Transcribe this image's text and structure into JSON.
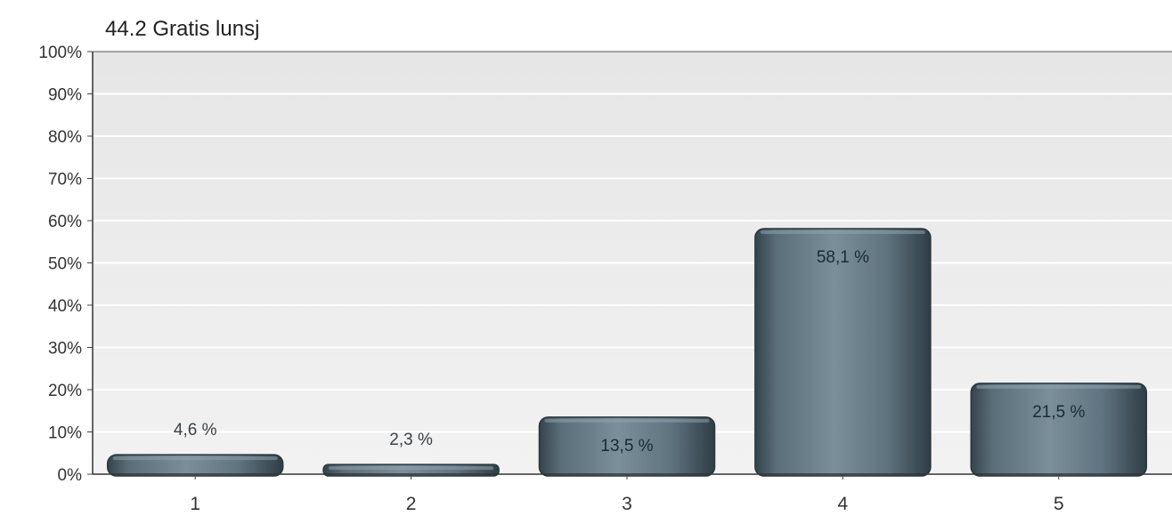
{
  "chart_data": {
    "type": "bar",
    "title": "44.2 Gratis lunsj",
    "xlabel": "",
    "ylabel": "",
    "categories": [
      "1",
      "2",
      "3",
      "4",
      "5"
    ],
    "values": [
      4.6,
      2.3,
      13.5,
      58.1,
      21.5
    ],
    "value_labels": [
      "4,6 %",
      "2,3 %",
      "13,5 %",
      "58,1 %",
      "21,5 %"
    ],
    "ylim": [
      0,
      100
    ],
    "yticks": [
      "0%",
      "10%",
      "20%",
      "30%",
      "40%",
      "50%",
      "60%",
      "70%",
      "80%",
      "90%",
      "100%"
    ],
    "grid": true,
    "legend": "none",
    "colors": {
      "bar": "#5f7480",
      "bar_highlight": "#8fa3ad",
      "bar_shadow": "#34434c",
      "plot_background": "#ececec",
      "gridline": "#ffffff"
    }
  }
}
